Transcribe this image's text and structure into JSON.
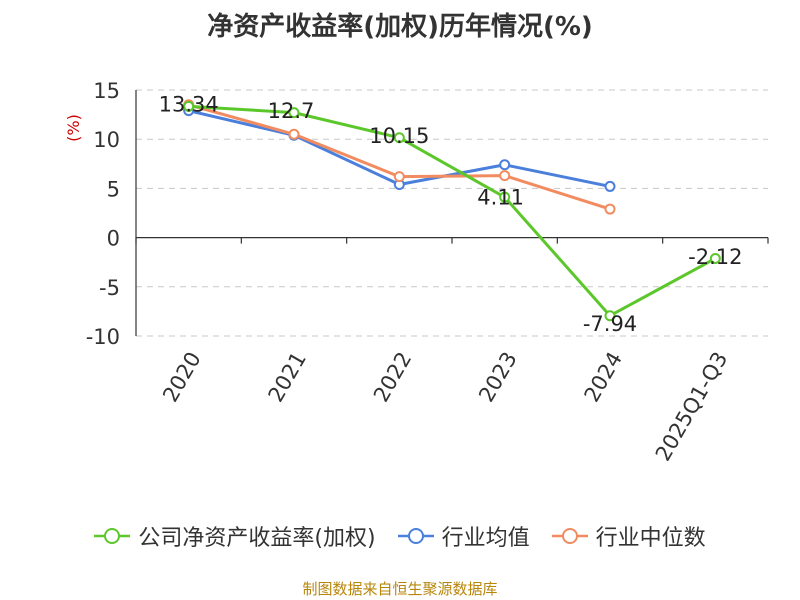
{
  "chart_data": {
    "type": "line",
    "title": "净资产收益率(加权)历年情况(%)",
    "ylabel": "(%)",
    "xlabel": "",
    "categories": [
      "2020",
      "2021",
      "2022",
      "2023",
      "2024",
      "2025Q1-Q3"
    ],
    "ylim": [
      -10,
      15
    ],
    "yticks": [
      15,
      10,
      5,
      0,
      -5,
      -10
    ],
    "grid": true,
    "legend_position": "bottom",
    "series": [
      {
        "name": "公司净资产收益率(加权)",
        "color": "#5cc72a",
        "values": [
          13.34,
          12.7,
          10.15,
          4.11,
          -7.94,
          -2.12
        ],
        "labels": [
          "13.34",
          "12.7",
          "10.15",
          "4.11",
          "-7.94",
          "-2.12"
        ]
      },
      {
        "name": "行业均值",
        "color": "#4a7fdb",
        "values": [
          12.9,
          10.4,
          5.4,
          7.4,
          5.2,
          null
        ]
      },
      {
        "name": "行业中位数",
        "color": "#f28c60",
        "values": [
          13.5,
          10.5,
          6.2,
          6.3,
          2.9,
          null
        ]
      }
    ]
  },
  "source": "制图数据来自恒生聚源数据库"
}
